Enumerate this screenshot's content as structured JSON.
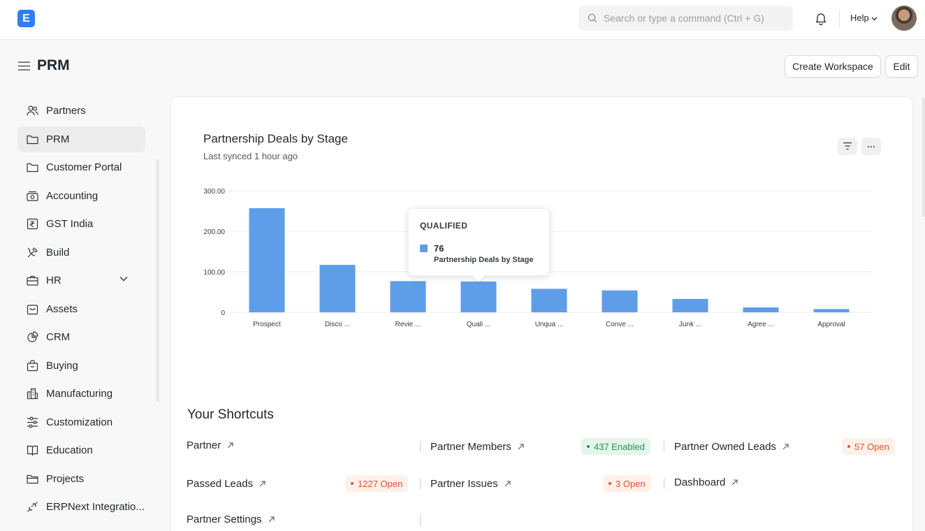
{
  "navbar": {
    "logo_letter": "E",
    "search_placeholder": "Search or type a command (Ctrl + G)",
    "help_label": "Help"
  },
  "page": {
    "title": "PRM",
    "create_workspace_label": "Create Workspace",
    "edit_label": "Edit"
  },
  "sidebar": {
    "items": [
      {
        "label": "Partners",
        "icon": "users-icon"
      },
      {
        "label": "PRM",
        "icon": "folder-icon",
        "active": true
      },
      {
        "label": "Customer Portal",
        "icon": "folder-icon"
      },
      {
        "label": "Accounting",
        "icon": "accounting-icon"
      },
      {
        "label": "GST India",
        "icon": "rupee-icon"
      },
      {
        "label": "Build",
        "icon": "tools-icon"
      },
      {
        "label": "HR",
        "icon": "briefcase-icon",
        "expandable": true
      },
      {
        "label": "Assets",
        "icon": "assets-icon"
      },
      {
        "label": "CRM",
        "icon": "pie-chart-icon"
      },
      {
        "label": "Buying",
        "icon": "buying-icon"
      },
      {
        "label": "Manufacturing",
        "icon": "factory-icon"
      },
      {
        "label": "Customization",
        "icon": "sliders-icon"
      },
      {
        "label": "Education",
        "icon": "book-icon"
      },
      {
        "label": "Projects",
        "icon": "folder-icon"
      },
      {
        "label": "ERPNext Integratio...",
        "icon": "integration-icon"
      }
    ]
  },
  "chart_card": {
    "title": "Partnership Deals by Stage",
    "subtitle": "Last synced 1 hour ago"
  },
  "chart_data": {
    "type": "bar",
    "title": "Partnership Deals by Stage",
    "categories": [
      "Prospect",
      "Disco ...",
      "Revie ...",
      "Quali ...",
      "Unqua ...",
      "Conve ...",
      "Junk ...",
      "Agree ...",
      "Approval"
    ],
    "series": [
      {
        "name": "Partnership Deals by Stage",
        "values": [
          257,
          117,
          77,
          76,
          58,
          54,
          33,
          12,
          8
        ]
      }
    ],
    "y_ticks": [
      "0",
      "100.00",
      "200.00",
      "300.00"
    ],
    "ylim": [
      0,
      300
    ],
    "grid": true,
    "bar_color": "#5e9de8",
    "tooltip": {
      "category": "QUALIFIED",
      "value": "76",
      "series": "Partnership Deals by Stage"
    }
  },
  "shortcuts": {
    "heading": "Your Shortcuts",
    "items": [
      {
        "label": "Partner"
      },
      {
        "label": "Partner Members",
        "badge": "437 Enabled",
        "badge_color": "green"
      },
      {
        "label": "Partner Owned Leads",
        "badge": "57 Open",
        "badge_color": "red"
      },
      {
        "label": "Passed Leads",
        "badge": "1227 Open",
        "badge_color": "red"
      },
      {
        "label": "Partner Issues",
        "badge": "3 Open",
        "badge_color": "red"
      },
      {
        "label": "Dashboard"
      },
      {
        "label": "Partner Settings"
      }
    ]
  }
}
